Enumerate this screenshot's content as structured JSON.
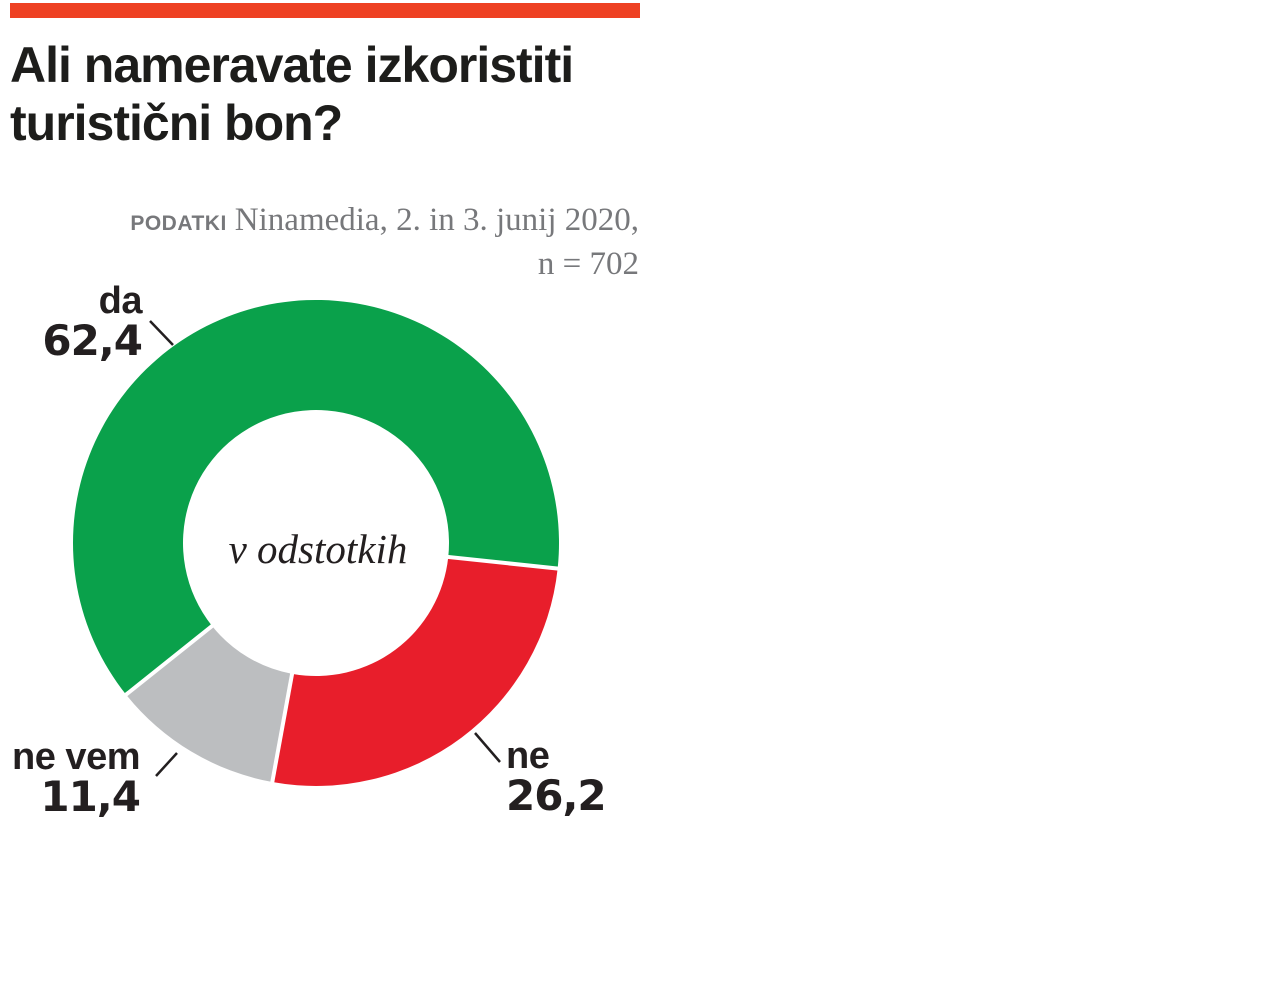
{
  "page": {
    "background": "#ffffff",
    "accent_bar_color": "#ee4123"
  },
  "header": {
    "title_line1": "Ali nameravate izkoristiti",
    "title_line2": "turistični bon?"
  },
  "source": {
    "label": "PODATKI",
    "text": "Ninamedia, 2. in 3. junij 2020,",
    "sample": "n = 702"
  },
  "chart_data": {
    "type": "pie",
    "subtype": "donut",
    "title": "Ali nameravate izkoristiti turistični bon?",
    "center_label": "v odstotkih",
    "unit": "percent",
    "rotation_deg": 231.4,
    "legend_position": "callouts-with-leader-lines",
    "segments": [
      {
        "label": "da",
        "value": 62.4,
        "value_label": "62,4",
        "color": "#0aa14b"
      },
      {
        "label": "ne",
        "value": 26.2,
        "value_label": "26,2",
        "color": "#e81e2b"
      },
      {
        "label": "ne vem",
        "value": 11.4,
        "value_label": "11,4",
        "color": "#bcbec0"
      }
    ],
    "colors": {
      "separator": "#ffffff",
      "leader_line": "#231f20",
      "label_text": "#231f20",
      "source_text": "#77787b"
    }
  }
}
